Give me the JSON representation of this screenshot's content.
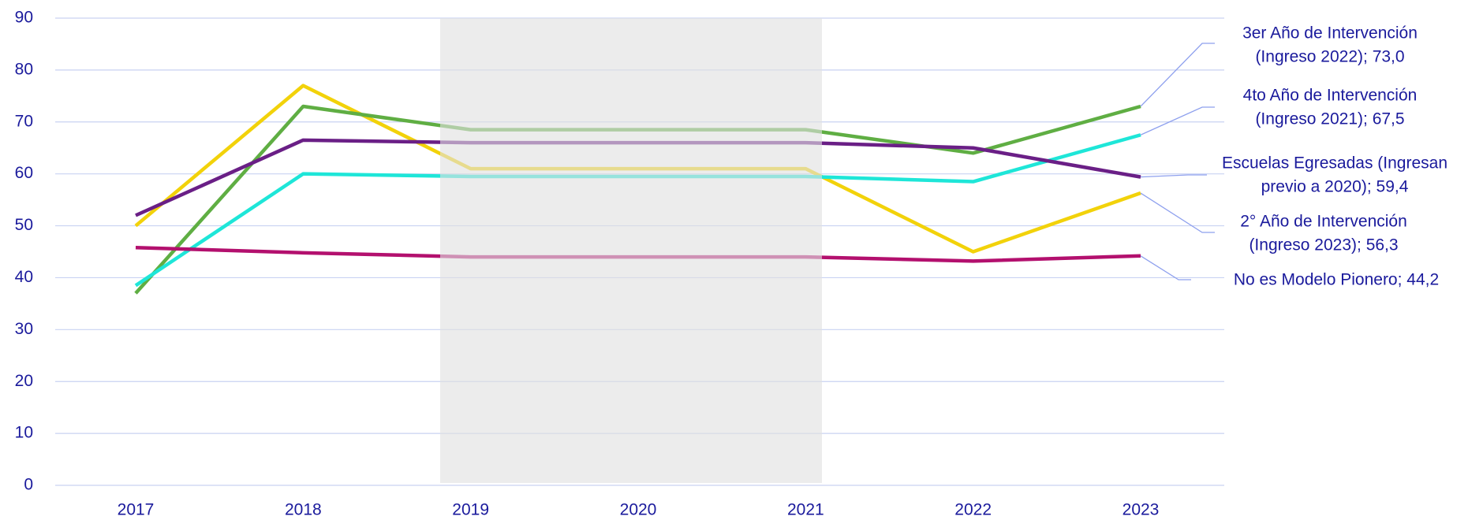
{
  "chart_data": {
    "type": "line",
    "categories": [
      "2017",
      "2018",
      "2019",
      "2020",
      "2021",
      "2022",
      "2023"
    ],
    "ylim": [
      0,
      90
    ],
    "yticks": [
      0,
      10,
      20,
      30,
      40,
      50,
      60,
      70,
      80,
      90
    ],
    "grid": true,
    "series": [
      {
        "label": [
          "2° Año de Intervención",
          "(Ingreso 2023); 56,3"
        ],
        "color": "#f2d20a",
        "values": [
          50,
          77,
          61,
          61,
          61,
          45,
          56.3
        ]
      },
      {
        "label": [
          "3er Año de Intervención",
          "(Ingreso 2022); 73,0"
        ],
        "color": "#5fae43",
        "values": [
          37,
          73,
          68.5,
          68.5,
          68.5,
          64,
          73.0
        ]
      },
      {
        "label": [
          "4to Año de Intervención",
          "(Ingreso 2021); 67,5"
        ],
        "color": "#1ee6d8",
        "values": [
          38.5,
          60,
          59.5,
          59.5,
          59.5,
          58.5,
          67.5
        ]
      },
      {
        "label": [
          "Escuelas Egresadas (Ingresan",
          "previo a 2020); 59,4"
        ],
        "color": "#6a1f86",
        "values": [
          52,
          66.5,
          66,
          66,
          66,
          65,
          59.4
        ]
      },
      {
        "label": [
          "No es Modelo Pionero; 44,2"
        ],
        "color": "#b3106e",
        "values": [
          45.8,
          44.8,
          44,
          44,
          44,
          43.2,
          44.2
        ]
      }
    ]
  }
}
